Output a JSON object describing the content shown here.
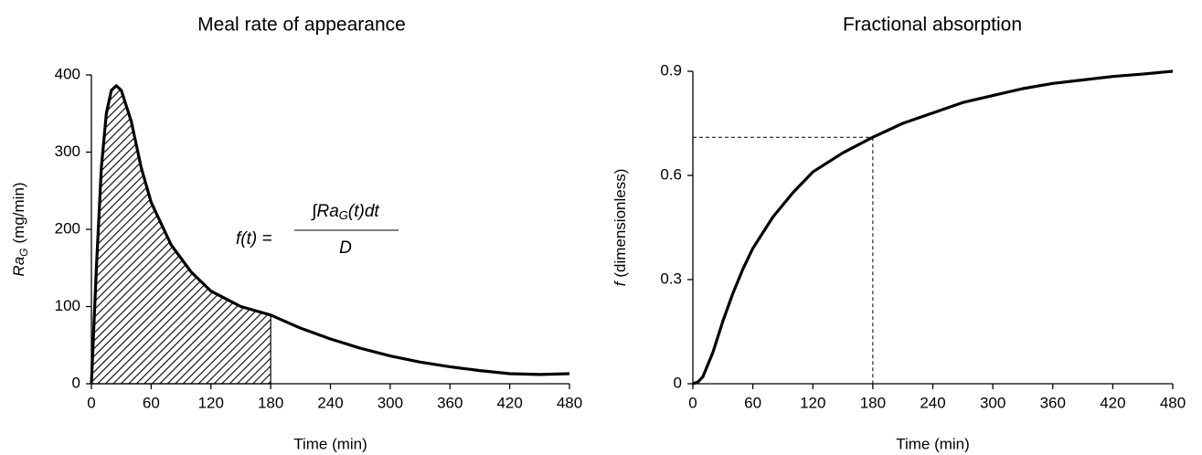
{
  "chart_data": [
    {
      "type": "line",
      "title": "Meal rate of appearance",
      "xlabel": "Time (min)",
      "ylabel_parts": [
        "Ra",
        "G",
        "(mg/min)"
      ],
      "x": [
        0,
        5,
        10,
        15,
        20,
        25,
        30,
        40,
        50,
        60,
        80,
        100,
        120,
        150,
        180,
        210,
        240,
        270,
        300,
        330,
        360,
        390,
        420,
        450,
        480
      ],
      "values": [
        0,
        150,
        280,
        350,
        380,
        386,
        380,
        340,
        280,
        235,
        180,
        145,
        120,
        100,
        89,
        72,
        58,
        46,
        36,
        28,
        22,
        17,
        13,
        12,
        13
      ],
      "color": "#000000",
      "xlim": [
        0,
        480
      ],
      "xticks": [
        0,
        60,
        120,
        180,
        240,
        300,
        360,
        420,
        480
      ],
      "ylim": [
        0,
        400
      ],
      "yticks": [
        0,
        100,
        200,
        300,
        400
      ],
      "shade_to": 180,
      "annotation": {
        "lhs": "f(t) =",
        "numerator": [
          "∫Ra",
          "G",
          "(t)dt"
        ],
        "denominator": "D"
      }
    },
    {
      "type": "line",
      "title": "Fractional absorption",
      "xlabel": "Time (min)",
      "ylabel_parts": [
        "f",
        "(dimensionless)"
      ],
      "x": [
        0,
        5,
        10,
        20,
        30,
        40,
        50,
        60,
        80,
        100,
        120,
        150,
        180,
        210,
        240,
        270,
        300,
        330,
        360,
        390,
        420,
        450,
        480
      ],
      "values": [
        0,
        0.005,
        0.02,
        0.09,
        0.18,
        0.26,
        0.33,
        0.39,
        0.48,
        0.55,
        0.61,
        0.665,
        0.71,
        0.75,
        0.78,
        0.81,
        0.83,
        0.85,
        0.865,
        0.875,
        0.885,
        0.892,
        0.9
      ],
      "color": "#000000",
      "xlim": [
        0,
        480
      ],
      "xticks": [
        0,
        60,
        120,
        180,
        240,
        300,
        360,
        420,
        480
      ],
      "ylim": [
        0,
        0.9
      ],
      "yticks": [
        0,
        0.3,
        0.6,
        0.9
      ],
      "guide": {
        "x": 180,
        "y": 0.71
      }
    }
  ]
}
